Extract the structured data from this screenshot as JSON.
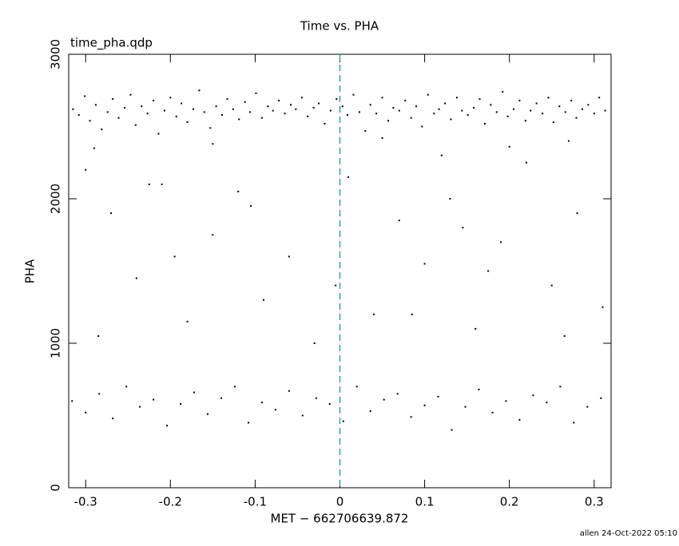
{
  "chart_data": {
    "type": "scatter",
    "title": "Time vs. PHA",
    "annotation": "time_pha.qdp",
    "x_label": "MET − 662706639.872",
    "y_label": "PHA",
    "footer": "allen 24-Oct-2022 05:10",
    "xlim": [
      -0.32,
      0.32
    ],
    "ylim": [
      0,
      3000
    ],
    "xticks": [
      -0.3,
      -0.2,
      -0.1,
      0,
      0.1,
      0.2,
      0.3
    ],
    "yticks": [
      0,
      1000,
      2000,
      3000
    ],
    "vline": {
      "x": 0,
      "color": "#1a9a9a"
    },
    "series": [
      {
        "color": "#000000",
        "x": [
          -0.315,
          -0.308,
          -0.301,
          -0.295,
          -0.288,
          -0.281,
          -0.274,
          -0.268,
          -0.261,
          -0.254,
          -0.247,
          -0.241,
          -0.234,
          -0.227,
          -0.22,
          -0.214,
          -0.207,
          -0.2,
          -0.193,
          -0.187,
          -0.18,
          -0.173,
          -0.166,
          -0.16,
          -0.153,
          -0.146,
          -0.139,
          -0.133,
          -0.126,
          -0.119,
          -0.112,
          -0.106,
          -0.099,
          -0.092,
          -0.085,
          -0.079,
          -0.072,
          -0.065,
          -0.058,
          -0.052,
          -0.045,
          -0.038,
          -0.031,
          -0.025,
          -0.018,
          -0.011,
          -0.004,
          0.003,
          0.009,
          0.016,
          0.023,
          0.03,
          0.036,
          0.043,
          0.05,
          0.057,
          0.063,
          0.07,
          0.077,
          0.084,
          0.09,
          0.097,
          0.104,
          0.111,
          0.117,
          0.124,
          0.131,
          0.138,
          0.144,
          0.151,
          0.158,
          0.165,
          0.171,
          0.178,
          0.185,
          0.192,
          0.198,
          0.205,
          0.212,
          0.219,
          0.225,
          0.232,
          0.239,
          0.246,
          0.252,
          0.259,
          0.266,
          0.273,
          0.279,
          0.286,
          0.293,
          0.3,
          0.306,
          0.313,
          -0.29,
          -0.15,
          0.05,
          0.12,
          0.2,
          0.27,
          -0.3,
          -0.27,
          -0.24,
          -0.21,
          -0.18,
          -0.15,
          -0.12,
          -0.09,
          -0.06,
          -0.03,
          0.01,
          0.04,
          0.07,
          0.1,
          0.13,
          0.16,
          0.19,
          0.22,
          0.25,
          0.28,
          0.31,
          -0.285,
          -0.195,
          -0.105,
          -0.005,
          0.085,
          0.175,
          0.265,
          -0.225,
          0.145,
          -0.316,
          -0.3,
          -0.284,
          -0.268,
          -0.252,
          -0.236,
          -0.22,
          -0.204,
          -0.188,
          -0.172,
          -0.156,
          -0.14,
          -0.124,
          -0.108,
          -0.092,
          -0.076,
          -0.06,
          -0.044,
          -0.028,
          -0.012,
          0.004,
          0.02,
          0.036,
          0.052,
          0.068,
          0.084,
          0.1,
          0.116,
          0.132,
          0.148,
          0.164,
          0.18,
          0.196,
          0.212,
          0.228,
          0.244,
          0.26,
          0.276,
          0.292,
          0.308
        ],
        "values": [
          2620,
          2580,
          2710,
          2540,
          2650,
          2480,
          2600,
          2690,
          2560,
          2630,
          2720,
          2510,
          2640,
          2590,
          2680,
          2450,
          2610,
          2700,
          2570,
          2660,
          2530,
          2620,
          2750,
          2600,
          2490,
          2640,
          2580,
          2690,
          2620,
          2550,
          2670,
          2600,
          2730,
          2560,
          2640,
          2610,
          2680,
          2590,
          2650,
          2620,
          2700,
          2570,
          2630,
          2660,
          2520,
          2610,
          2690,
          2640,
          2580,
          2720,
          2600,
          2470,
          2650,
          2590,
          2700,
          2540,
          2630,
          2610,
          2680,
          2560,
          2640,
          2500,
          2720,
          2590,
          2620,
          2660,
          2550,
          2700,
          2610,
          2580,
          2630,
          2690,
          2520,
          2650,
          2600,
          2740,
          2570,
          2620,
          2680,
          2540,
          2610,
          2660,
          2590,
          2700,
          2530,
          2640,
          2600,
          2680,
          2560,
          2620,
          2650,
          2590,
          2700,
          2610,
          2350,
          2380,
          2420,
          2300,
          2360,
          2400,
          2200,
          1900,
          1450,
          2100,
          1150,
          1750,
          2050,
          1300,
          1600,
          1000,
          2150,
          1200,
          1850,
          1550,
          2000,
          1100,
          1700,
          2250,
          1400,
          1900,
          1250,
          1050,
          1600,
          1950,
          1400,
          1200,
          1500,
          1050,
          2100,
          1800,
          600,
          520,
          650,
          480,
          700,
          560,
          610,
          430,
          580,
          660,
          510,
          620,
          700,
          450,
          590,
          540,
          670,
          500,
          620,
          580,
          460,
          700,
          530,
          610,
          650,
          490,
          570,
          630,
          400,
          560,
          680,
          520,
          600,
          470,
          640,
          590,
          700,
          450,
          560,
          620
        ]
      }
    ]
  }
}
